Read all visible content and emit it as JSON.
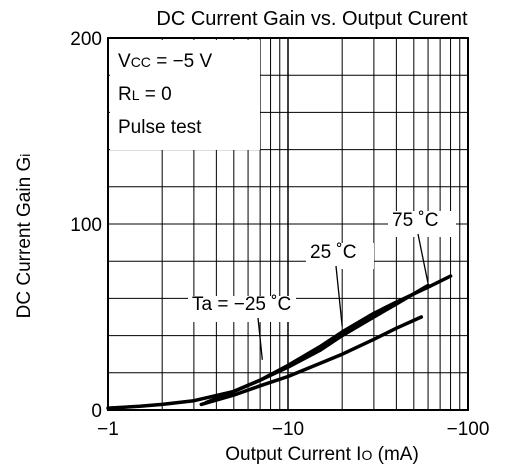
{
  "chart_data": {
    "type": "line",
    "title": "DC Current Gain vs. Output Curent",
    "xlabel": {
      "main": "Output Current  I",
      "sub": "O",
      "unit": " (mA)"
    },
    "ylabel": {
      "main": "DC Current Gain  G",
      "sub": "i"
    },
    "x_scale": "log",
    "x_axis_direction": "negative",
    "xlim": [
      -1,
      -100
    ],
    "ylim": [
      0,
      200
    ],
    "x_ticks": [
      "−1",
      "−10",
      "−100"
    ],
    "y_ticks": [
      "0",
      "100",
      "200"
    ],
    "grid": true,
    "conditions": [
      {
        "main": "V",
        "sub": "CC",
        "rest": " =  −5 V"
      },
      {
        "main": "R",
        "sub": "L",
        "rest": " = 0"
      },
      {
        "main": "Pulse test",
        "sub": "",
        "rest": ""
      }
    ],
    "series": [
      {
        "name": "Ta = −25 ˚C",
        "x": [
          -3.3,
          -5,
          -7,
          -10,
          -15,
          -20,
          -30,
          -40,
          -55
        ],
        "y": [
          3,
          8,
          13,
          18,
          25,
          30,
          38,
          44,
          50
        ]
      },
      {
        "name": "25 ˚C",
        "x": [
          -3.5,
          -5,
          -7,
          -10,
          -15,
          -20,
          -30,
          -40,
          -60
        ],
        "y": [
          4,
          10,
          16,
          23,
          32,
          40,
          50,
          57,
          67
        ]
      },
      {
        "name": "75 ˚C",
        "x": [
          -1,
          -1.5,
          -2,
          -3,
          -5,
          -7,
          -10,
          -15,
          -20,
          -30,
          -40,
          -60,
          -80
        ],
        "y": [
          1,
          2,
          3,
          5,
          10,
          16,
          24,
          34,
          42,
          52,
          58,
          66,
          72
        ]
      }
    ]
  }
}
